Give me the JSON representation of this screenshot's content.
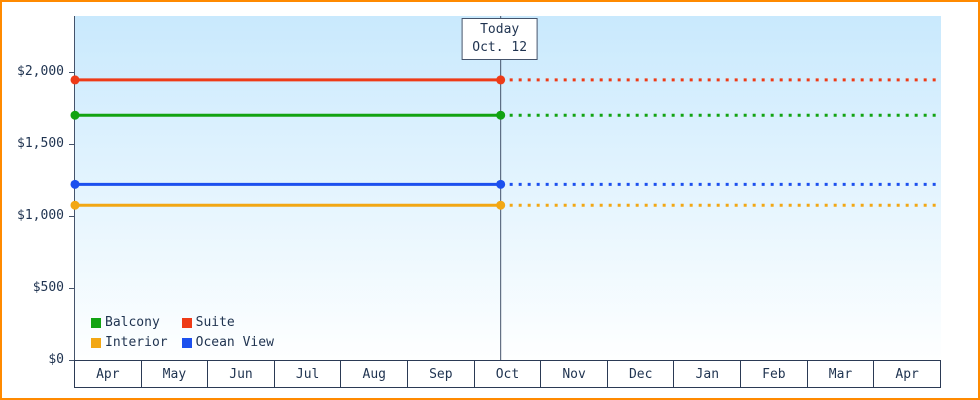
{
  "colors": {
    "frame": "#ff8a00",
    "axis": "#44536b",
    "text": "#1f3350",
    "plot_bg_top": "#c9e9fd",
    "plot_bg_bottom": "#feffff",
    "today_line": "#44536b",
    "month_cell_border": "#2b3a55"
  },
  "chart_data": {
    "type": "line",
    "x_categories": [
      "Apr",
      "May",
      "Jun",
      "Jul",
      "Aug",
      "Sep",
      "Oct",
      "Nov",
      "Dec",
      "Jan",
      "Feb",
      "Mar",
      "Apr"
    ],
    "ylim": [
      0,
      2000
    ],
    "y_ticks": [
      {
        "value": 0,
        "label": "$0"
      },
      {
        "value": 500,
        "label": "$500"
      },
      {
        "value": 1000,
        "label": "$1,000"
      },
      {
        "value": 1500,
        "label": "$1,500"
      },
      {
        "value": 2000,
        "label": "$2,000"
      }
    ],
    "grid": false,
    "today_marker": {
      "label_line1": "Today",
      "label_line2": "Oct. 12",
      "month_index": 6,
      "month_fraction": 0.39
    },
    "series": [
      {
        "name": "Suite",
        "color": "#ee3b17",
        "value": 1945,
        "style": "solid before today, dotted projection after"
      },
      {
        "name": "Balcony",
        "color": "#12a312",
        "value": 1700,
        "style": "solid before today, dotted projection after"
      },
      {
        "name": "Ocean View",
        "color": "#1c50ee",
        "value": 1220,
        "style": "solid before today, dotted projection after"
      },
      {
        "name": "Interior",
        "color": "#f2a714",
        "value": 1075,
        "style": "solid before today, dotted projection after"
      }
    ],
    "legend": {
      "position": "bottom-left",
      "columns": 2,
      "order": [
        "Balcony",
        "Suite",
        "Interior",
        "Ocean View"
      ]
    }
  }
}
